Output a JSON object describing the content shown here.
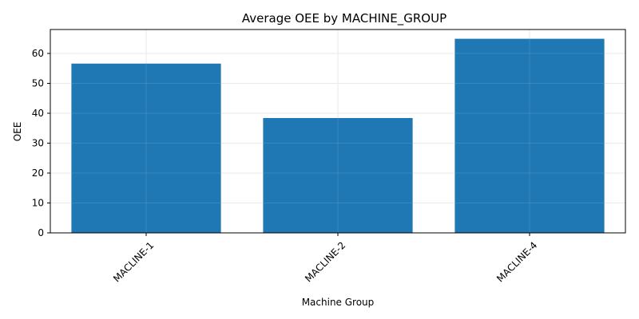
{
  "chart_data": {
    "type": "bar",
    "title": "Average OEE by MACHINE_GROUP",
    "xlabel": "Machine Group",
    "ylabel": "OEE",
    "categories": [
      "MACLINE-1",
      "MACLINE-2",
      "MACLINE-4"
    ],
    "values": [
      56.6,
      38.4,
      64.9
    ],
    "ylim": [
      0,
      68
    ],
    "yticks": [
      0,
      10,
      20,
      30,
      40,
      50,
      60
    ],
    "xtick_rotation": 45,
    "grid": true,
    "bar_color": "#1f77b4",
    "grid_color": "#e6e6e6"
  }
}
